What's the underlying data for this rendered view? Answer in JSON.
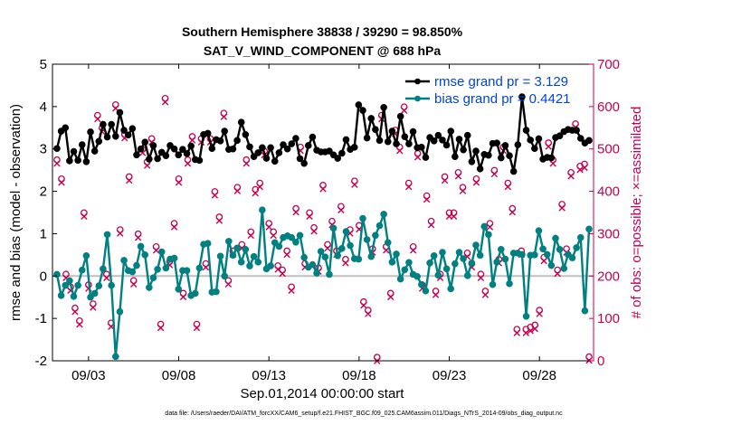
{
  "chart_data": {
    "type": "line",
    "title": "Southern Hemisphere 38838 / 39290 = 98.850%",
    "subtitle": "SAT_V_WIND_COMPONENT @ 688 hPa",
    "xlabel": "Sep.01,2014 00:00:00 start",
    "ylabel": "rmse and bias (model - observation)",
    "y2label": "# of obs: o=possible; ×=assimilated",
    "footer": "data file: /Users/raeder/DAI/ATM_forcXX/CAM6_setup/f.e21.FHIST_BGC.f09_025.CAM6assim.011/Diags_NTrS_2014-09/obs_diag_output.nc",
    "x_ticks": [
      {
        "day": 3,
        "label": "09/03"
      },
      {
        "day": 8,
        "label": "09/08"
      },
      {
        "day": 13,
        "label": "09/13"
      },
      {
        "day": 18,
        "label": "09/18"
      },
      {
        "day": 23,
        "label": "09/23"
      },
      {
        "day": 28,
        "label": "09/28"
      }
    ],
    "xlim": [
      1.0,
      31.0
    ],
    "ylim": [
      -2,
      5
    ],
    "y_ticks": [
      "-2",
      "-1",
      "0",
      "1",
      "2",
      "3",
      "4",
      "5"
    ],
    "y2lim": [
      0,
      700
    ],
    "y2_ticks": [
      "0",
      "100",
      "200",
      "300",
      "400",
      "500",
      "600",
      "700"
    ],
    "legend": [
      {
        "name": "rmse grand pr = 3.129",
        "color": "#000000"
      },
      {
        "name": "bias grand pr = 0.4421",
        "color": "#008080"
      }
    ],
    "colors": {
      "rmse": "#000000",
      "bias": "#008080",
      "obs": "#c80050",
      "zero_line": "#bfbfbf"
    },
    "rmse": [
      3.01,
      3.42,
      3.5,
      2.72,
      2.94,
      2.73,
      3.1,
      2.7,
      3.4,
      2.95,
      3.18,
      3.58,
      3.28,
      3.58,
      3.3,
      3.86,
      3.44,
      3.33,
      3.48,
      2.86,
      3.0,
      3.16,
      2.76,
      3.08,
      2.77,
      2.92,
      2.84,
      3.08,
      3.0,
      2.86,
      2.99,
      2.89,
      3.07,
      2.75,
      2.73,
      3.34,
      3.37,
      3.01,
      3.22,
      3.19,
      3.42,
      2.99,
      3.0,
      3.2,
      3.63,
      3.34,
      3.05,
      2.82,
      2.91,
      3.03,
      2.78,
      3.03,
      2.71,
      2.91,
      3.1,
      3.0,
      3.12,
      3.25,
      2.77,
      2.66,
      3.08,
      3.28,
      2.97,
      2.93,
      2.93,
      2.95,
      2.86,
      2.78,
      2.9,
      3.22,
      2.99,
      3.04,
      4.04,
      3.91,
      3.26,
      3.72,
      3.46,
      3.2,
      3.98,
      3.17,
      3.42,
      3.12,
      3.77,
      3.29,
      3.12,
      3.41,
      3.03,
      3.04,
      2.8,
      3.27,
      3.19,
      3.32,
      3.21,
      3.09,
      3.42,
      2.82,
      3.23,
      2.98,
      3.32,
      2.7,
      2.95,
      2.53,
      2.87,
      2.85,
      3.13,
      3.14,
      2.79,
      3.08,
      2.84,
      2.47,
      3.1,
      4.23,
      3.44,
      3.21,
      3.01,
      3.24,
      2.76,
      2.8,
      2.79,
      3.27,
      3.31,
      3.41,
      3.46,
      3.44,
      3.44,
      3.25,
      3.14,
      3.2
    ],
    "bias": [
      0.04,
      -0.46,
      -0.22,
      -0.11,
      -0.48,
      -0.22,
      0.14,
      0.48,
      -0.5,
      -0.41,
      -0.23,
      0.17,
      0.98,
      -0.22,
      -1.9,
      -0.84,
      0.37,
      0.13,
      0.1,
      0.25,
      0.7,
      0.5,
      -0.27,
      -0.04,
      0.16,
      0.57,
      0.19,
      0.4,
      0.42,
      -0.31,
      0.13,
      0.13,
      -0.46,
      -0.41,
      0.19,
      0.75,
      0.77,
      -0.38,
      -0.37,
      0.47,
      0.0,
      0.82,
      0.49,
      0.66,
      0.33,
      0.63,
      0.24,
      0.46,
      0.33,
      1.56,
      0.17,
      0.24,
      0.79,
      0.7,
      0.91,
      0.95,
      0.91,
      0.8,
      0.96,
      0.44,
      0.21,
      0.27,
      0.07,
      0.58,
      0.45,
      0.04,
      1.13,
      0.48,
      0.65,
      1.05,
      0.72,
      0.41,
      0.4,
      1.36,
      0.86,
      0.46,
      0.96,
      1.19,
      1.46,
      0.79,
      0.33,
      0.52,
      -0.07,
      0.15,
      0.32,
      0.04,
      -0.01,
      -0.2,
      -0.35,
      0.31,
      0.48,
      0.02,
      0.56,
      0.17,
      -0.3,
      0.29,
      0.56,
      0.41,
      0.01,
      0.31,
      0.73,
      0.49,
      1.17,
      0.98,
      -0.2,
      0.33,
      0.63,
      0.4,
      -0.18,
      0.54,
      0.54,
      0.51,
      -0.95,
      0.49,
      0.5,
      1.07,
      0.64,
      0.51,
      0.25,
      0.89,
      0.63,
      0.18,
      0.51,
      0.43,
      0.67,
      0.91,
      -0.82,
      1.11
    ],
    "obs": [
      {
        "d": 1.25,
        "v": 470
      },
      {
        "d": 1.5,
        "v": 425
      },
      {
        "d": 1.75,
        "v": 200
      },
      {
        "d": 2.0,
        "v": 170
      },
      {
        "d": 2.25,
        "v": 120
      },
      {
        "d": 2.5,
        "v": 90
      },
      {
        "d": 2.75,
        "v": 345
      },
      {
        "d": 3.0,
        "v": 175
      },
      {
        "d": 3.25,
        "v": 130
      },
      {
        "d": 3.5,
        "v": 575
      },
      {
        "d": 3.75,
        "v": 545
      },
      {
        "d": 4.0,
        "v": 200
      },
      {
        "d": 4.25,
        "v": 85
      },
      {
        "d": 4.5,
        "v": 600
      },
      {
        "d": 4.75,
        "v": 305
      },
      {
        "d": 5.0,
        "v": 530
      },
      {
        "d": 5.25,
        "v": 430
      },
      {
        "d": 5.5,
        "v": 185
      },
      {
        "d": 5.75,
        "v": 295
      },
      {
        "d": 6.0,
        "v": 495
      },
      {
        "d": 6.25,
        "v": 465
      },
      {
        "d": 6.5,
        "v": 520
      },
      {
        "d": 6.75,
        "v": 265
      },
      {
        "d": 7.0,
        "v": 82
      },
      {
        "d": 7.25,
        "v": 615
      },
      {
        "d": 7.5,
        "v": 230
      },
      {
        "d": 7.75,
        "v": 320
      },
      {
        "d": 8.0,
        "v": 425
      },
      {
        "d": 8.25,
        "v": 155
      },
      {
        "d": 8.5,
        "v": 470
      },
      {
        "d": 8.75,
        "v": 525
      },
      {
        "d": 9.0,
        "v": 82
      },
      {
        "d": 9.25,
        "v": 520
      },
      {
        "d": 9.5,
        "v": 225
      },
      {
        "d": 9.75,
        "v": 520
      },
      {
        "d": 10.0,
        "v": 395
      },
      {
        "d": 10.25,
        "v": 335
      },
      {
        "d": 10.5,
        "v": 580
      },
      {
        "d": 10.75,
        "v": 185
      },
      {
        "d": 11.0,
        "v": 255
      },
      {
        "d": 11.25,
        "v": 405
      },
      {
        "d": 11.5,
        "v": 270
      },
      {
        "d": 11.75,
        "v": 470
      },
      {
        "d": 12.0,
        "v": 300
      },
      {
        "d": 12.25,
        "v": 400
      },
      {
        "d": 12.5,
        "v": 415
      },
      {
        "d": 12.75,
        "v": 490
      },
      {
        "d": 13.0,
        "v": 320
      },
      {
        "d": 13.25,
        "v": 300
      },
      {
        "d": 13.5,
        "v": 220
      },
      {
        "d": 13.75,
        "v": 210
      },
      {
        "d": 14.0,
        "v": 255
      },
      {
        "d": 14.25,
        "v": 170
      },
      {
        "d": 14.5,
        "v": 355
      },
      {
        "d": 14.75,
        "v": 500
      },
      {
        "d": 15.0,
        "v": 225
      },
      {
        "d": 15.25,
        "v": 345
      },
      {
        "d": 15.5,
        "v": 310
      },
      {
        "d": 15.75,
        "v": 215
      },
      {
        "d": 16.0,
        "v": 410
      },
      {
        "d": 16.25,
        "v": 270
      },
      {
        "d": 16.5,
        "v": 325
      },
      {
        "d": 16.75,
        "v": 255
      },
      {
        "d": 17.0,
        "v": 360
      },
      {
        "d": 17.25,
        "v": 235
      },
      {
        "d": 17.5,
        "v": 305
      },
      {
        "d": 17.75,
        "v": 420
      },
      {
        "d": 18.0,
        "v": 315
      },
      {
        "d": 18.25,
        "v": 135
      },
      {
        "d": 18.5,
        "v": 115
      },
      {
        "d": 18.75,
        "v": 260
      },
      {
        "d": 19.0,
        "v": 4
      },
      {
        "d": 19.25,
        "v": 575
      },
      {
        "d": 19.5,
        "v": 265
      },
      {
        "d": 19.75,
        "v": 155
      },
      {
        "d": 20.0,
        "v": 540
      },
      {
        "d": 20.25,
        "v": 500
      },
      {
        "d": 20.5,
        "v": 595
      },
      {
        "d": 20.75,
        "v": 415
      },
      {
        "d": 21.0,
        "v": 265
      },
      {
        "d": 21.25,
        "v": 485
      },
      {
        "d": 21.5,
        "v": 175
      },
      {
        "d": 21.75,
        "v": 385
      },
      {
        "d": 22.0,
        "v": 325
      },
      {
        "d": 22.25,
        "v": 160
      },
      {
        "d": 22.5,
        "v": 200
      },
      {
        "d": 22.75,
        "v": 430
      },
      {
        "d": 23.0,
        "v": 345
      },
      {
        "d": 23.25,
        "v": 345
      },
      {
        "d": 23.5,
        "v": 440
      },
      {
        "d": 23.75,
        "v": 405
      },
      {
        "d": 24.0,
        "v": 250
      },
      {
        "d": 24.25,
        "v": 225
      },
      {
        "d": 24.5,
        "v": 425
      },
      {
        "d": 24.75,
        "v": 200
      },
      {
        "d": 25.0,
        "v": 160
      },
      {
        "d": 25.25,
        "v": 320
      },
      {
        "d": 25.5,
        "v": 445
      },
      {
        "d": 25.75,
        "v": 235
      },
      {
        "d": 26.0,
        "v": 500
      },
      {
        "d": 26.25,
        "v": 415
      },
      {
        "d": 26.5,
        "v": 355
      },
      {
        "d": 26.75,
        "v": 70
      },
      {
        "d": 27.0,
        "v": 255
      },
      {
        "d": 27.25,
        "v": 70
      },
      {
        "d": 27.5,
        "v": 75
      },
      {
        "d": 27.75,
        "v": 80
      },
      {
        "d": 28.0,
        "v": 115
      },
      {
        "d": 28.25,
        "v": 240
      },
      {
        "d": 28.5,
        "v": 510
      },
      {
        "d": 28.75,
        "v": 470
      },
      {
        "d": 29.0,
        "v": 210
      },
      {
        "d": 29.25,
        "v": 365
      },
      {
        "d": 29.5,
        "v": 260
      },
      {
        "d": 29.75,
        "v": 440
      },
      {
        "d": 30.0,
        "v": 555
      },
      {
        "d": 30.25,
        "v": 455
      },
      {
        "d": 30.5,
        "v": 460
      },
      {
        "d": 30.75,
        "v": 5
      }
    ]
  }
}
